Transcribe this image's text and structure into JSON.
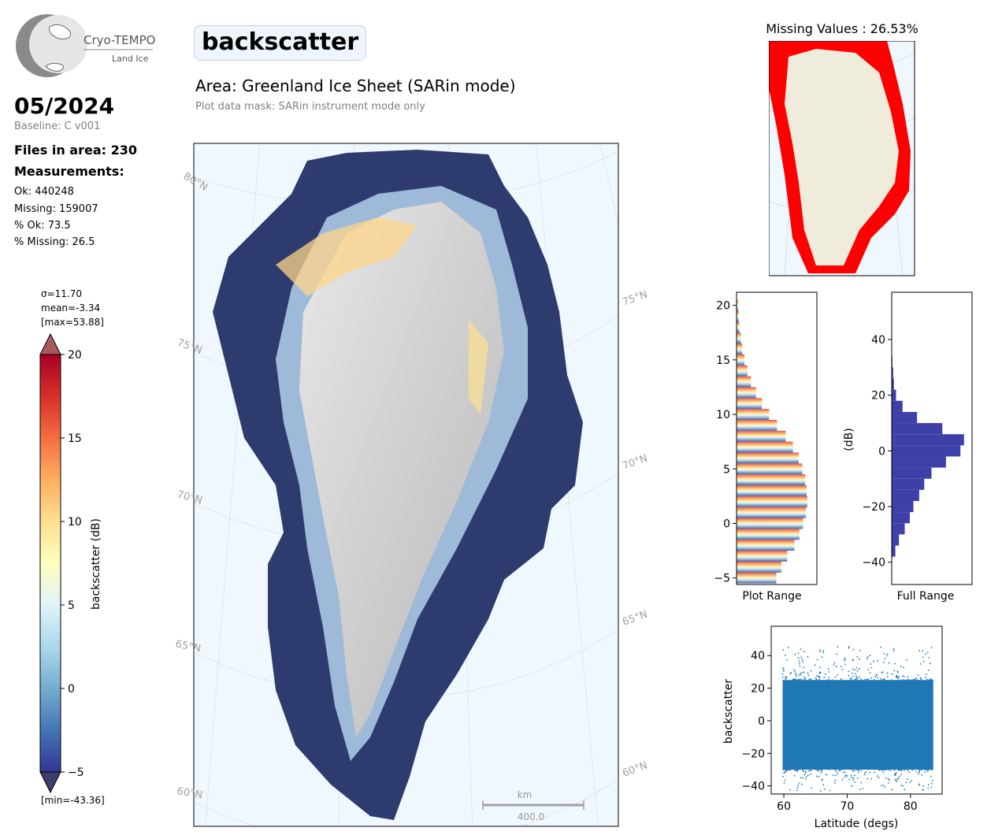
{
  "logo": {
    "name": "Cryo-TEMPO",
    "sub": "Land Ice"
  },
  "header": {
    "title": "backscatter",
    "area": "Area: Greenland Ice Sheet (SARin mode)",
    "mask_note": "Plot data mask: SARin instrument mode only"
  },
  "sidebar": {
    "date": "05/2024",
    "baseline": "Baseline: C v001",
    "files": "Files in area: 230",
    "measurements_heading": "Measurements:",
    "ok": "Ok: 440248",
    "missing": "Missing: 159007",
    "pct_ok": "% Ok: 73.5",
    "pct_missing": "% Missing: 26.5"
  },
  "colorbar": {
    "sigma": "σ=11.70",
    "mean": "mean=-3.34",
    "max": "[max=53.88]",
    "min": "[min=-43.36]",
    "label": "backscatter (dB)",
    "ticks": [
      "20",
      "15",
      "10",
      "5",
      "0",
      "−5"
    ],
    "range": [
      -5,
      20
    ],
    "colors": [
      "#313695",
      "#4575b4",
      "#74add1",
      "#abd9e9",
      "#e0f3f8",
      "#ffffbf",
      "#fee090",
      "#fdae61",
      "#f46d43",
      "#d73027",
      "#a50026"
    ]
  },
  "map": {
    "lat_labels": [
      "80°N",
      "75°N",
      "70°N",
      "65°N",
      "60°N"
    ],
    "lat_labels_right": [
      "75°N",
      "70°N",
      "65°N",
      "60°N"
    ],
    "scale_unit": "km",
    "scale_value": "400.0",
    "ocean_color": "#f0f8ff"
  },
  "missing_panel": {
    "title": "Missing Values : 26.53%",
    "color": "#ff0000",
    "land_color": "#efecdc"
  },
  "chart_data": [
    {
      "type": "bar",
      "orientation": "horizontal",
      "title": "",
      "xlabel": "Plot Range",
      "ylabel": "",
      "ylim": [
        -5.6,
        21.2
      ],
      "yticks": [
        "20",
        "15",
        "10",
        "5",
        "0",
        "−5"
      ],
      "bins": [
        -5,
        -4,
        -3,
        -2,
        -1,
        0,
        1,
        2,
        3,
        4,
        5,
        6,
        7,
        8,
        9,
        10,
        11,
        12,
        13,
        14,
        15,
        16,
        17,
        18,
        19,
        20
      ],
      "counts": [
        0.55,
        0.62,
        0.7,
        0.8,
        0.87,
        0.92,
        0.96,
        0.98,
        0.97,
        0.95,
        0.91,
        0.86,
        0.78,
        0.68,
        0.56,
        0.45,
        0.35,
        0.27,
        0.2,
        0.15,
        0.11,
        0.08,
        0.06,
        0.04,
        0.03,
        0.02
      ]
    },
    {
      "type": "bar",
      "orientation": "horizontal",
      "title": "",
      "xlabel": "Full Range",
      "ylabel": "(dB)",
      "ylim": [
        -48,
        57
      ],
      "yticks": [
        "40",
        "20",
        "0",
        "−20",
        "−40"
      ],
      "bins": [
        -36,
        -32,
        -28,
        -24,
        -20,
        -16,
        -12,
        -8,
        -4,
        0,
        4,
        8,
        12,
        16,
        20,
        24,
        28,
        32
      ],
      "counts": [
        0.05,
        0.1,
        0.18,
        0.25,
        0.3,
        0.38,
        0.45,
        0.55,
        0.75,
        0.95,
        1.0,
        0.7,
        0.35,
        0.15,
        0.06,
        0.03,
        0.02,
        0.01
      ],
      "color": "#3f3fa9"
    },
    {
      "type": "scatter",
      "title": "",
      "xlabel": "Latitude (degs)",
      "ylabel": "backscatter",
      "xlim": [
        58,
        85
      ],
      "ylim": [
        -45,
        58
      ],
      "xticks": [
        "60",
        "70",
        "80"
      ],
      "yticks": [
        "40",
        "20",
        "0",
        "−20",
        "−40"
      ],
      "x_range": [
        59.8,
        83.6
      ],
      "y_core": [
        -30,
        25
      ],
      "y_extremes": [
        -43.36,
        53.88
      ],
      "color": "#1f77b4"
    }
  ]
}
